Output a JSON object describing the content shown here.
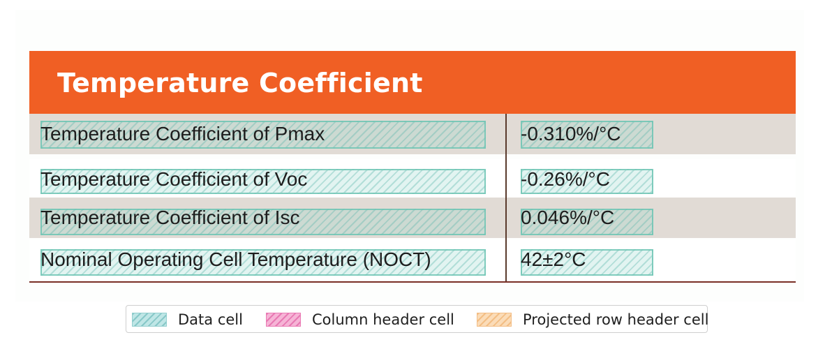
{
  "table": {
    "title": "Temperature Coefficient",
    "rows": [
      {
        "label": "Temperature Coefficient of Pmax",
        "value": "-0.310%/°C"
      },
      {
        "label": "Temperature Coefficient of Voc",
        "value": "-0.26%/°C"
      },
      {
        "label": "Temperature Coefficient of Isc",
        "value": "0.046%/°C"
      },
      {
        "label": "Nominal Operating Cell Temperature (NOCT)",
        "value": "42±2°C"
      }
    ]
  },
  "legend": {
    "items": [
      {
        "label": "Data cell",
        "color": "#bfe6e6"
      },
      {
        "label": "Column header cell",
        "color": "#f6b4d6"
      },
      {
        "label": "Projected row header cell",
        "color": "#fbdcb8"
      }
    ]
  },
  "colors": {
    "title_bar": "#f05f24",
    "shaded_row": "#e1dbd5",
    "divider": "#5a3a2c"
  }
}
